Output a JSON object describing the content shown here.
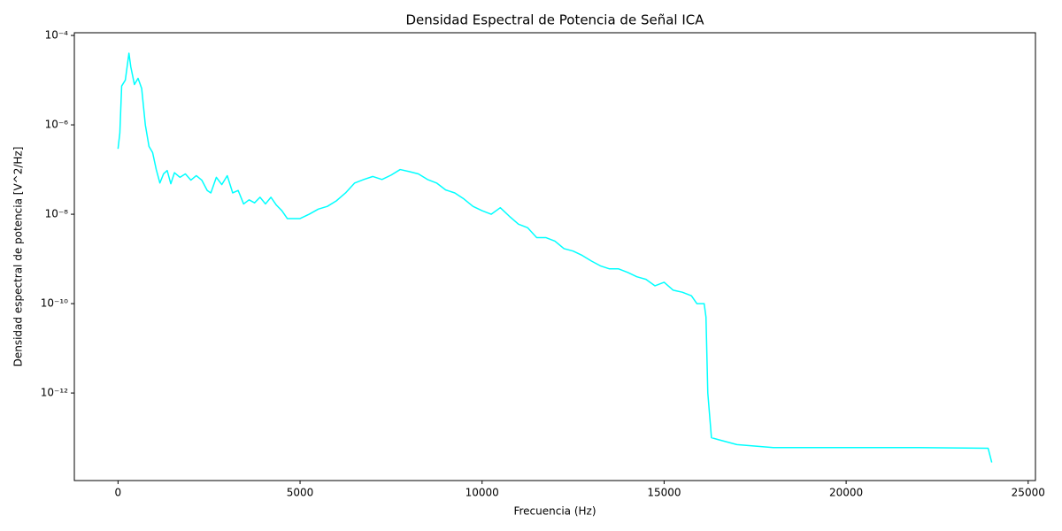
{
  "chart_data": {
    "type": "line",
    "title": "Densidad Espectral de Potencia de Señal ICA",
    "x_label": "Frecuencia (Hz)",
    "y_label": "Densidad espectral de potencia [V^2/Hz]",
    "y_scale": "log",
    "grid": false,
    "xlim": [
      -1200,
      25200
    ],
    "ylim": [
      1.1e-14,
      0.000115
    ],
    "xticks": [
      0,
      5000,
      10000,
      15000,
      20000,
      25000
    ],
    "yticks": [
      {
        "value": 0.0001,
        "label": "10⁻⁴"
      },
      {
        "value": 1e-06,
        "label": "10⁻⁶"
      },
      {
        "value": 1e-08,
        "label": "10⁻⁸"
      },
      {
        "value": 1e-10,
        "label": "10⁻¹⁰"
      },
      {
        "value": 1e-12,
        "label": "10⁻¹²"
      }
    ],
    "series": [
      {
        "color": "#00ffff",
        "x": [
          0,
          50,
          100,
          200,
          300,
          350,
          450,
          550,
          650,
          750,
          850,
          950,
          1050,
          1150,
          1250,
          1350,
          1450,
          1550,
          1700,
          1850,
          2000,
          2150,
          2300,
          2450,
          2550,
          2700,
          2850,
          3000,
          3150,
          3300,
          3450,
          3600,
          3750,
          3900,
          4050,
          4200,
          4350,
          4500,
          4650,
          4800,
          5000,
          5250,
          5500,
          5750,
          6000,
          6250,
          6500,
          6750,
          7000,
          7250,
          7500,
          7750,
          8000,
          8250,
          8500,
          8750,
          9000,
          9250,
          9500,
          9750,
          10000,
          10250,
          10500,
          10750,
          11000,
          11250,
          11500,
          11750,
          12000,
          12250,
          12500,
          12750,
          13000,
          13250,
          13500,
          13750,
          14000,
          14250,
          14500,
          14750,
          15000,
          15250,
          15500,
          15750,
          15900,
          16100,
          16150,
          16200,
          16300,
          16500,
          17000,
          18000,
          20000,
          22000,
          23900,
          24000
        ],
        "values": [
          2.9e-07,
          6.6e-07,
          7.4e-06,
          1e-05,
          4e-05,
          2e-05,
          8e-06,
          1.1e-05,
          6.5e-06,
          1e-06,
          3.3e-07,
          2.4e-07,
          1e-07,
          5e-08,
          8e-08,
          9.5e-08,
          4.8e-08,
          8.5e-08,
          6.7e-08,
          8e-08,
          5.8e-08,
          7.3e-08,
          5.8e-08,
          3.4e-08,
          3e-08,
          6.7e-08,
          4.6e-08,
          7.3e-08,
          3e-08,
          3.4e-08,
          1.7e-08,
          2.1e-08,
          1.8e-08,
          2.4e-08,
          1.7e-08,
          2.4e-08,
          1.6e-08,
          1.2e-08,
          8e-09,
          8e-09,
          8e-09,
          1e-08,
          1.3e-08,
          1.5e-08,
          2e-08,
          3e-08,
          5e-08,
          6e-08,
          7e-08,
          6e-08,
          7.5e-08,
          1e-07,
          9e-08,
          8e-08,
          6e-08,
          5e-08,
          3.5e-08,
          3e-08,
          2.2e-08,
          1.5e-08,
          1.2e-08,
          1e-08,
          1.4e-08,
          9e-09,
          6e-09,
          5e-09,
          3e-09,
          3e-09,
          2.5e-09,
          1.7e-09,
          1.5e-09,
          1.2e-09,
          9e-10,
          7e-10,
          6e-10,
          6e-10,
          5e-10,
          4e-10,
          3.5e-10,
          2.5e-10,
          3e-10,
          2e-10,
          1.8e-10,
          1.5e-10,
          1e-10,
          1e-10,
          5e-11,
          1e-12,
          1e-13,
          9e-14,
          7e-14,
          6e-14,
          6e-14,
          6e-14,
          5.8e-14,
          2.8e-14
        ]
      }
    ]
  }
}
